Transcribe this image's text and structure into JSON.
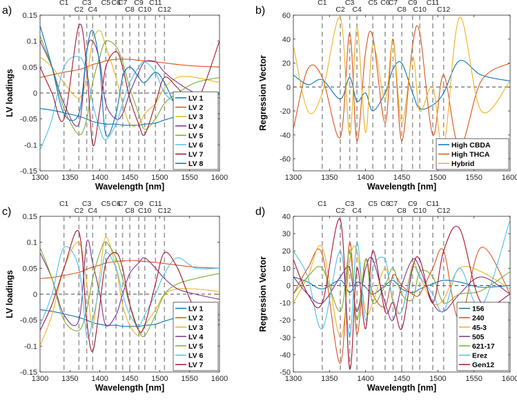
{
  "colors": [
    "#0072BD",
    "#D95319",
    "#EDB120",
    "#7E2F8E",
    "#77AC30",
    "#4DBEEE",
    "#A2142F",
    "#0072BD"
  ],
  "c_lines": {
    "labels": [
      "C1",
      "C2",
      "C3",
      "C4",
      "C5",
      "C6",
      "C7",
      "C8",
      "C9",
      "C10",
      "C11",
      "C12"
    ],
    "x": [
      1340,
      1365,
      1378,
      1388,
      1410,
      1427,
      1438,
      1450,
      1465,
      1475,
      1493,
      1508
    ],
    "rows": [
      0,
      1,
      0,
      1,
      0,
      0,
      0,
      1,
      0,
      1,
      0,
      1
    ]
  },
  "chart_data": [
    {
      "panel_label": "a)",
      "type": "line",
      "xlabel": "Wavelength [nm]",
      "ylabel": "LV loadings",
      "xlim": [
        1300,
        1600
      ],
      "ylim": [
        -0.15,
        0.15
      ],
      "xticks": [
        "1300",
        "1350",
        "1400",
        "1450",
        "1500",
        "1550",
        "1600"
      ],
      "yticks": [
        "-0.15",
        "-0.1",
        "-0.05",
        "0",
        "0.05",
        "0.1",
        "0.15"
      ],
      "legend_position": "bottom-right",
      "x": [
        1300,
        1320,
        1340,
        1365,
        1378,
        1388,
        1400,
        1410,
        1427,
        1438,
        1450,
        1465,
        1475,
        1493,
        1508,
        1530,
        1560,
        1600
      ],
      "series": [
        {
          "name": "LV 1",
          "values": [
            -0.03,
            -0.033,
            -0.038,
            -0.045,
            -0.05,
            -0.055,
            -0.058,
            -0.06,
            -0.06,
            -0.062,
            -0.062,
            -0.062,
            -0.06,
            -0.058,
            -0.052,
            -0.045,
            -0.04,
            -0.04
          ]
        },
        {
          "name": "LV 2",
          "values": [
            0.03,
            0.035,
            0.04,
            0.045,
            0.05,
            0.055,
            0.058,
            0.062,
            0.065,
            0.065,
            0.065,
            0.063,
            0.062,
            0.06,
            0.058,
            0.055,
            0.052,
            0.05
          ]
        },
        {
          "name": "LV 3",
          "values": [
            0.07,
            0.05,
            0.02,
            -0.01,
            0.03,
            0.1,
            0.12,
            0.09,
            0.03,
            -0.02,
            -0.06,
            -0.06,
            -0.04,
            -0.02,
            0.01,
            0.03,
            0.03,
            0.02
          ]
        },
        {
          "name": "LV 4",
          "values": [
            0.1,
            0.05,
            -0.02,
            -0.06,
            0.08,
            0.1,
            0.06,
            -0.02,
            -0.05,
            -0.04,
            0,
            0.04,
            0.06,
            0.06,
            0.04,
            0.02,
            0,
            -0.01
          ]
        },
        {
          "name": "LV 5",
          "values": [
            0.11,
            0.05,
            -0.03,
            -0.08,
            -0.05,
            0.02,
            0.07,
            0.1,
            0.09,
            0.06,
            0.01,
            -0.04,
            -0.07,
            -0.05,
            -0.02,
            0,
            0.02,
            0.03
          ]
        },
        {
          "name": "LV 6",
          "values": [
            -0.11,
            -0.05,
            0.05,
            0.07,
            0.04,
            -0.02,
            -0.07,
            -0.09,
            -0.06,
            -0.02,
            0.02,
            0.05,
            0.06,
            0.04,
            0,
            -0.02,
            -0.03,
            -0.02
          ]
        },
        {
          "name": "LV 7",
          "values": [
            0.05,
            0,
            -0.05,
            0.13,
            0.05,
            -0.1,
            -0.03,
            0.05,
            0.08,
            0.05,
            -0.01,
            -0.06,
            -0.08,
            -0.02,
            0.03,
            0.01,
            -0.02,
            0.1
          ]
        },
        {
          "name": "LV 8",
          "values": [
            0.13,
            0.05,
            -0.04,
            -0.04,
            0.08,
            0.12,
            0.05,
            -0.08,
            -0.04,
            0.03,
            0.05,
            0.03,
            0.02,
            0.04,
            0.02,
            -0.03,
            -0.06,
            0
          ]
        }
      ]
    },
    {
      "panel_label": "b)",
      "type": "line",
      "xlabel": "Wavelength [nm]",
      "ylabel": "Regression Vector",
      "xlim": [
        1300,
        1600
      ],
      "ylim": [
        -70,
        60
      ],
      "xticks": [
        "1300",
        "1350",
        "1400",
        "1450",
        "1500",
        "1550",
        "1600"
      ],
      "yticks": [
        "-60",
        "-40",
        "-20",
        "0",
        "20",
        "40",
        "60"
      ],
      "legend_position": "bottom-right",
      "x": [
        1300,
        1320,
        1340,
        1365,
        1378,
        1388,
        1400,
        1410,
        1427,
        1438,
        1450,
        1465,
        1475,
        1493,
        1508,
        1530,
        1560,
        1600
      ],
      "series": [
        {
          "name": "High CBDA",
          "values": [
            10,
            2,
            6,
            -10,
            8,
            -12,
            -5,
            -20,
            -5,
            15,
            20,
            -5,
            -18,
            -15,
            -5,
            22,
            10,
            5
          ]
        },
        {
          "name": "High THCA",
          "values": [
            -35,
            15,
            8,
            -42,
            45,
            -45,
            30,
            42,
            -30,
            40,
            -45,
            35,
            45,
            -40,
            10,
            -50,
            5,
            20
          ]
        },
        {
          "name": "Hybrid",
          "values": [
            35,
            -20,
            -5,
            58,
            -40,
            50,
            -38,
            35,
            -10,
            38,
            -30,
            25,
            -20,
            0,
            -50,
            58,
            -20,
            5
          ]
        }
      ]
    },
    {
      "panel_label": "c)",
      "type": "line",
      "xlabel": "Wavelength [nm]",
      "ylabel": "LV loadings",
      "xlim": [
        1300,
        1600
      ],
      "ylim": [
        -0.15,
        0.15
      ],
      "xticks": [
        "1300",
        "1350",
        "1400",
        "1450",
        "1500",
        "1550",
        "1600"
      ],
      "yticks": [
        "-0.15",
        "-0.1",
        "-0.05",
        "0",
        "0.05",
        "0.1",
        "0.15"
      ],
      "legend_position": "bottom-right",
      "x": [
        1300,
        1320,
        1340,
        1365,
        1378,
        1388,
        1400,
        1410,
        1427,
        1438,
        1450,
        1465,
        1475,
        1493,
        1508,
        1530,
        1560,
        1600
      ],
      "series": [
        {
          "name": "LV 1",
          "values": [
            -0.03,
            -0.033,
            -0.038,
            -0.045,
            -0.05,
            -0.055,
            -0.058,
            -0.06,
            -0.06,
            -0.062,
            -0.062,
            -0.062,
            -0.06,
            -0.058,
            -0.052,
            -0.045,
            -0.04,
            -0.04
          ]
        },
        {
          "name": "LV 2",
          "values": [
            0.03,
            0.032,
            0.036,
            0.042,
            0.048,
            0.052,
            0.056,
            0.06,
            0.063,
            0.064,
            0.065,
            0.064,
            0.063,
            0.061,
            0.059,
            0.056,
            0.052,
            0.05
          ]
        },
        {
          "name": "LV 3",
          "values": [
            -0.1,
            -0.04,
            0.05,
            0.1,
            0.02,
            -0.06,
            0.04,
            0.11,
            0.05,
            -0.02,
            -0.06,
            -0.08,
            -0.06,
            -0.03,
            0,
            0.01,
            0.01,
            0.005
          ]
        },
        {
          "name": "LV 4",
          "values": [
            0.08,
            0.03,
            -0.04,
            -0.05,
            0.1,
            0.06,
            0,
            -0.06,
            -0.04,
            0,
            0.04,
            0.06,
            0.07,
            0.05,
            0.03,
            0.01,
            0,
            -0.01
          ]
        },
        {
          "name": "LV 5",
          "values": [
            0.09,
            0.03,
            -0.05,
            -0.07,
            -0.03,
            0.03,
            0.08,
            0.1,
            0.07,
            0.03,
            -0.02,
            -0.07,
            -0.08,
            -0.04,
            0,
            0.02,
            0.03,
            0.04
          ]
        },
        {
          "name": "LV 6",
          "values": [
            -0.06,
            0,
            0.09,
            0.05,
            -0.08,
            -0.05,
            0.02,
            0.08,
            0.05,
            0,
            -0.04,
            -0.06,
            -0.04,
            0,
            0.04,
            0.07,
            0.05,
            0.05
          ]
        },
        {
          "name": "LV 7",
          "values": [
            -0.07,
            -0.02,
            0.05,
            0.12,
            -0.05,
            -0.11,
            -0.02,
            0.06,
            0.08,
            0.05,
            -0.02,
            -0.07,
            -0.06,
            0.02,
            0.08,
            0.05,
            -0.03,
            -0.06
          ]
        }
      ]
    },
    {
      "panel_label": "d)",
      "type": "line",
      "xlabel": "Wavelength [nm]",
      "ylabel": "Regression Vector",
      "xlim": [
        1300,
        1600
      ],
      "ylim": [
        -50,
        40
      ],
      "xticks": [
        "1300",
        "1350",
        "1400",
        "1450",
        "1500",
        "1550",
        "1600"
      ],
      "yticks": [
        "-50",
        "-40",
        "-30",
        "-20",
        "-10",
        "0",
        "10",
        "20",
        "30",
        "40"
      ],
      "legend_position": "bottom-right",
      "x": [
        1300,
        1320,
        1340,
        1365,
        1378,
        1388,
        1400,
        1410,
        1427,
        1438,
        1450,
        1465,
        1475,
        1493,
        1508,
        1530,
        1560,
        1600
      ],
      "series": [
        {
          "name": "156",
          "values": [
            5,
            2,
            -2,
            3,
            -4,
            2,
            -1,
            -5,
            0,
            3,
            -2,
            -4,
            -2,
            1,
            3,
            2,
            -1,
            0
          ]
        },
        {
          "name": "240",
          "values": [
            -5,
            10,
            18,
            -45,
            25,
            -28,
            15,
            -5,
            -12,
            6,
            0,
            -5,
            -5,
            10,
            20,
            -20,
            22,
            -5
          ]
        },
        {
          "name": "45-3",
          "values": [
            -10,
            5,
            22,
            -30,
            15,
            20,
            -15,
            -10,
            10,
            -8,
            -15,
            12,
            5,
            -10,
            -8,
            10,
            8,
            -2
          ]
        },
        {
          "name": "505",
          "values": [
            5,
            -5,
            -10,
            5,
            10,
            -15,
            10,
            15,
            -10,
            -20,
            0,
            15,
            10,
            -10,
            -15,
            -5,
            5,
            -5
          ]
        },
        {
          "name": "621-17",
          "values": [
            -5,
            5,
            10,
            -15,
            20,
            -20,
            15,
            -10,
            0,
            10,
            -5,
            -8,
            8,
            5,
            -10,
            -5,
            -3,
            8
          ]
        },
        {
          "name": "Erez",
          "values": [
            20,
            5,
            -25,
            20,
            -30,
            25,
            -20,
            10,
            15,
            -10,
            -15,
            10,
            5,
            -5,
            -15,
            10,
            -12,
            38
          ]
        },
        {
          "name": "Gen12",
          "values": [
            15,
            -5,
            -10,
            38,
            -48,
            10,
            -25,
            20,
            -15,
            -10,
            -25,
            10,
            15,
            -10,
            20,
            33,
            -10,
            -5
          ]
        }
      ]
    }
  ]
}
